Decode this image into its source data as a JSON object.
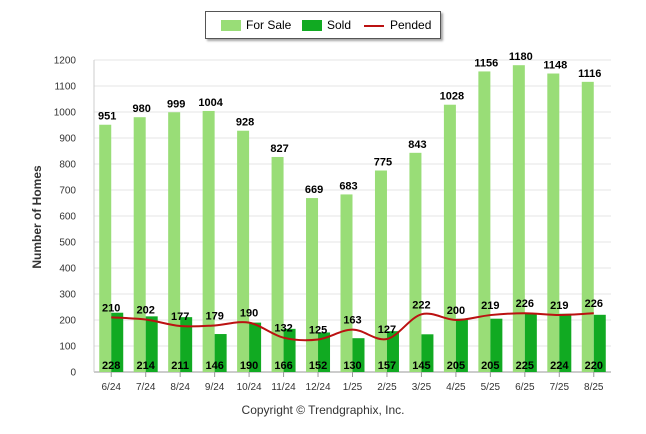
{
  "chart_data": {
    "type": "bar",
    "categories": [
      "6/24",
      "7/24",
      "8/24",
      "9/24",
      "10/24",
      "11/24",
      "12/24",
      "1/25",
      "2/25",
      "3/25",
      "4/25",
      "5/25",
      "6/25",
      "7/25",
      "8/25"
    ],
    "series": [
      {
        "name": "For Sale",
        "kind": "bar",
        "color": "#99dd77",
        "values": [
          951,
          980,
          999,
          1004,
          928,
          827,
          669,
          683,
          775,
          843,
          1028,
          1156,
          1180,
          1148,
          1116
        ]
      },
      {
        "name": "Sold",
        "kind": "bar",
        "color": "#11aa22",
        "values": [
          228,
          214,
          211,
          146,
          190,
          166,
          152,
          130,
          157,
          145,
          205,
          205,
          225,
          224,
          220
        ]
      },
      {
        "name": "Pended",
        "kind": "line",
        "color": "#bb1111",
        "values": [
          210,
          202,
          177,
          179,
          190,
          132,
          125,
          163,
          127,
          222,
          200,
          219,
          226,
          219,
          226
        ]
      }
    ],
    "ylabel": "Number of Homes",
    "xlabel": "",
    "ylim": [
      0,
      1200
    ],
    "yticks": [
      0,
      100,
      200,
      300,
      400,
      500,
      600,
      700,
      800,
      900,
      1000,
      1100,
      1200
    ],
    "grid": true,
    "legend_position": "top-center"
  },
  "footer": {
    "copyright": "Copyright © Trendgraphix, Inc."
  }
}
